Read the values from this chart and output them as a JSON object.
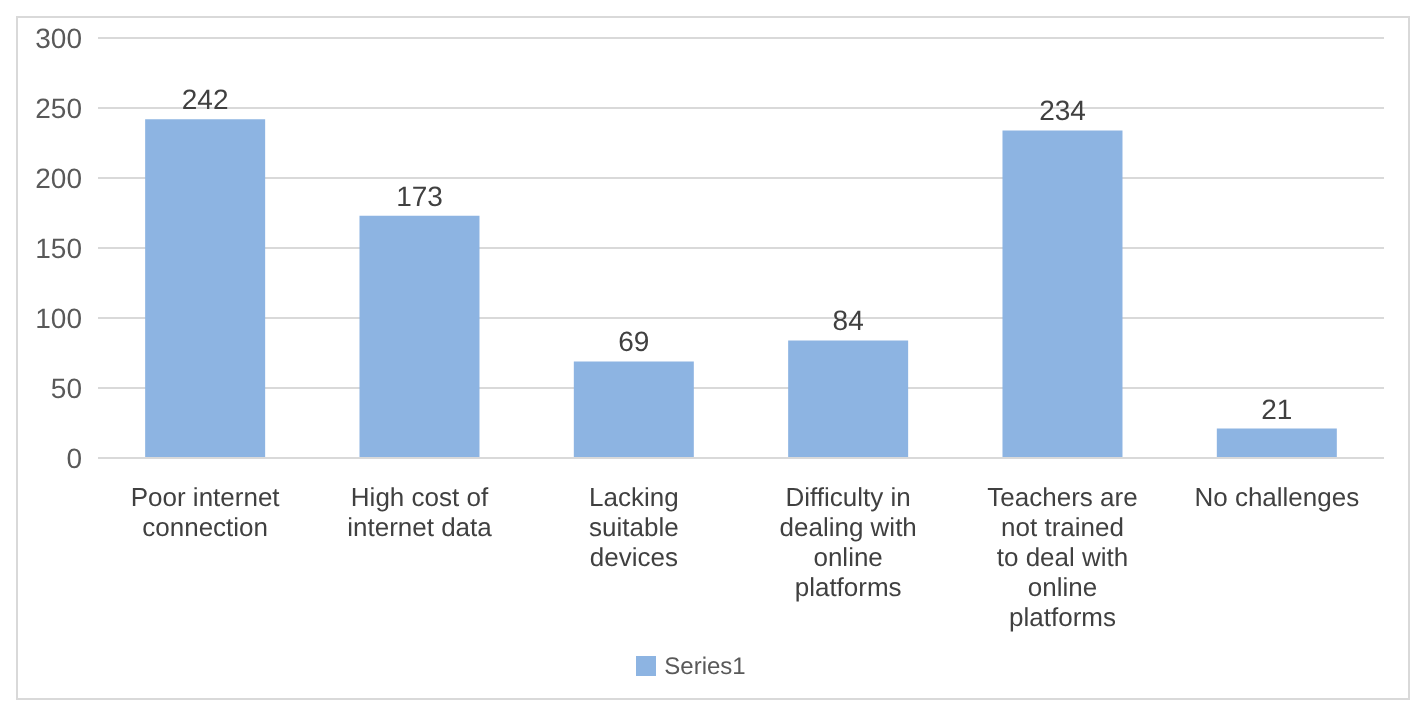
{
  "chart_data": {
    "type": "bar",
    "categories": [
      "Poor internet connection",
      "High cost of internet data",
      "Lacking suitable devices",
      "Difficulty in dealing with online platforms",
      "Teachers are not trained to deal with online platforms",
      "No challenges"
    ],
    "series": [
      {
        "name": "Series1",
        "color": "#8db4e2",
        "values": [
          242,
          173,
          69,
          84,
          234,
          21
        ]
      }
    ],
    "ylim": [
      0,
      300
    ],
    "yticks": [
      0,
      50,
      100,
      150,
      200,
      250,
      300
    ],
    "grid": "y",
    "legend": "bottom",
    "data_labels": true
  }
}
